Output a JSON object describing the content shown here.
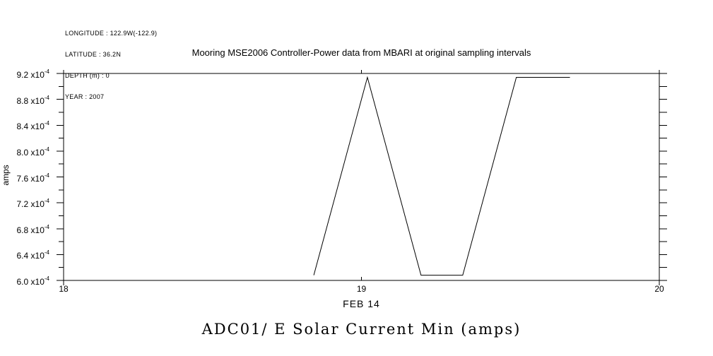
{
  "header": {
    "metadata_lines": [
      "LONGITUDE : 122.9W(-122.9)",
      "LATITUDE : 36.2N",
      "DEPTH (m) : 0",
      "YEAR : 2007"
    ],
    "title": "Mooring MSE2006 Controller-Power data from MBARI at original sampling intervals"
  },
  "footer": {
    "plot_caption": "ADC01/ E Solar Current Min (amps)"
  },
  "chart_data": {
    "type": "line",
    "title": "Mooring MSE2006 Controller-Power data from MBARI at original sampling intervals",
    "subtitle": "ADC01/ E Solar Current Min (amps)",
    "ylabel": "amps",
    "x_date_label": "FEB 14",
    "xlim": [
      18,
      20
    ],
    "x_ticks": [
      18,
      19,
      20
    ],
    "x_tick_labels": [
      "18",
      "19",
      "20"
    ],
    "ylim": [
      0.0006,
      0.00092
    ],
    "y_minor_step_e4": 0.2,
    "y_major_step_e4": 0.4,
    "y_major_tick_labels": [
      "6.0",
      "6.4",
      "6.8",
      "7.2",
      "7.6",
      "8.0",
      "8.4",
      "8.8",
      "9.2"
    ],
    "y_scale_prefix": "x10",
    "y_scale_exponent": "-4",
    "grid": false,
    "legend": false,
    "background": "#ffffff",
    "axis_color": "#000000",
    "series": [
      {
        "name": "ADC01/ E Solar Current Min",
        "units": "amps",
        "color": "#000000",
        "points": [
          {
            "x": 18.84,
            "y": 0.000608
          },
          {
            "x": 19.02,
            "y": 0.000914
          },
          {
            "x": 19.2,
            "y": 0.000608
          },
          {
            "x": 19.34,
            "y": 0.000608
          },
          {
            "x": 19.52,
            "y": 0.000914
          },
          {
            "x": 19.7,
            "y": 0.000914
          }
        ]
      }
    ]
  }
}
